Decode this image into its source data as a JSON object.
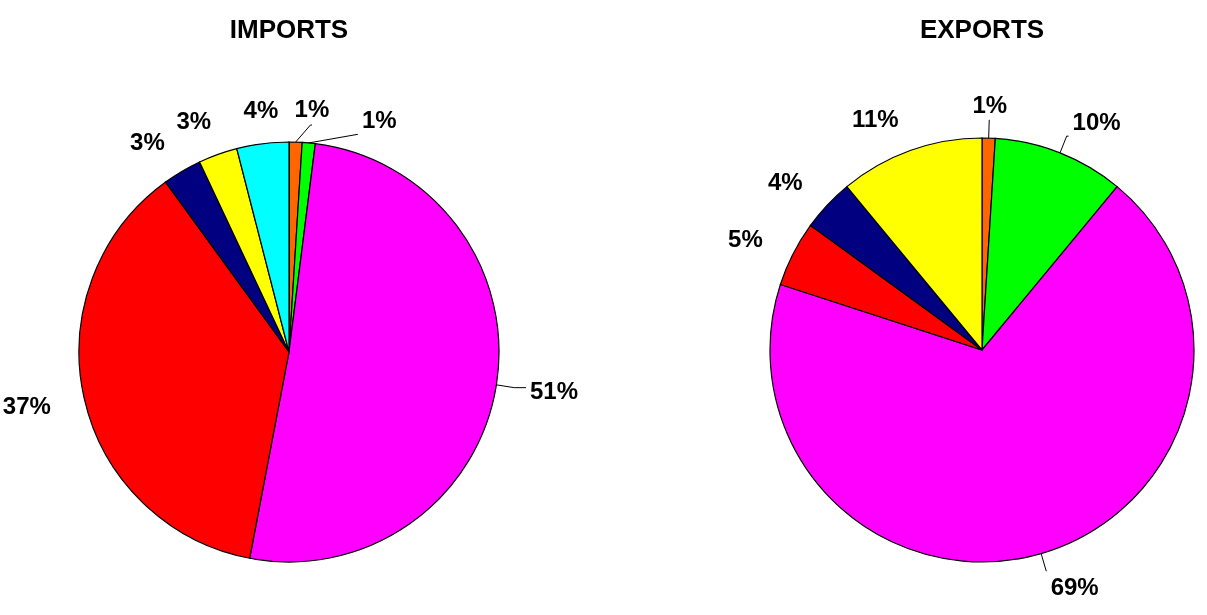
{
  "chart_data": [
    {
      "type": "pie",
      "title": "IMPORTS",
      "categories": [
        null,
        null,
        null,
        null,
        null,
        null,
        null
      ],
      "values": [
        1,
        1,
        51,
        37,
        3,
        3,
        4
      ],
      "colors": [
        "#ff6600",
        "#00ff00",
        "#ff00ff",
        "#ff0000",
        "#000080",
        "#ffff00",
        "#00ffff"
      ],
      "value_labels": [
        "1%",
        "1%",
        "51%",
        "37%",
        "3%",
        "3%",
        "4%"
      ]
    },
    {
      "type": "pie",
      "title": "EXPORTS",
      "categories": [
        null,
        null,
        null,
        null,
        null,
        null
      ],
      "values": [
        1,
        10,
        69,
        5,
        4,
        11
      ],
      "colors": [
        "#ff6600",
        "#00ff00",
        "#ff00ff",
        "#ff0000",
        "#000080",
        "#ffff00"
      ],
      "value_labels": [
        "1%",
        "10%",
        "69%",
        "5%",
        "4%",
        "11%"
      ]
    }
  ]
}
